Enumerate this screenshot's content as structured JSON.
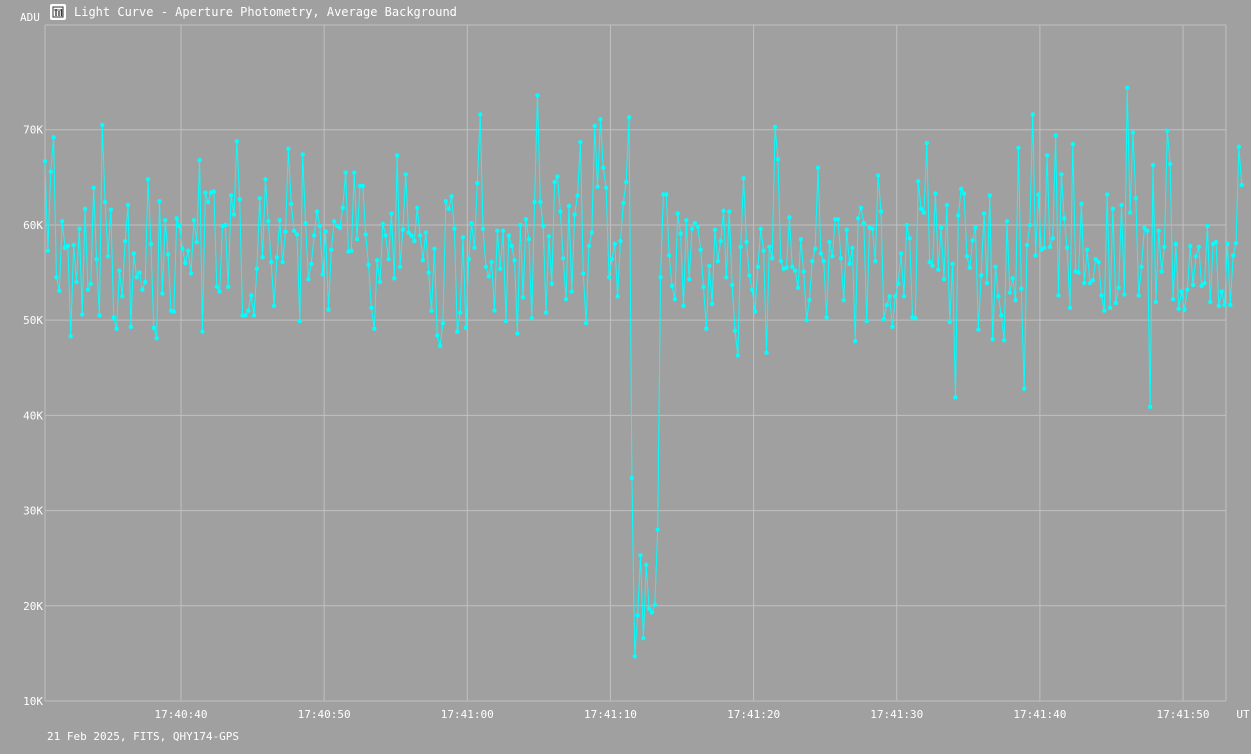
{
  "window": {
    "title": "Light Curve - Aperture Photometry, Average Background",
    "icon": "chart-icon",
    "footer": "21 Feb 2025, FITS, QHY174-GPS"
  },
  "colors": {
    "background": "#a0a0a0",
    "grid": "#c0c0c0",
    "series": "#00ffff",
    "text": "#ffffff"
  },
  "chart_data": {
    "type": "line",
    "title": "Light Curve - Aperture Photometry, Average Background",
    "ylabel": "ADU",
    "xlabel": "UT",
    "ylim": [
      10000,
      81000
    ],
    "xlim": [
      "17:40:30.5",
      "17:41:53.0"
    ],
    "grid": true,
    "markers": true,
    "x_ticks": [
      "17:40:40",
      "17:40:50",
      "17:41:00",
      "17:41:10",
      "17:41:20",
      "17:41:30",
      "17:41:40",
      "17:41:50"
    ],
    "y_ticks": [
      "10K",
      "20K",
      "30K",
      "40K",
      "50K",
      "60K",
      "70K"
    ],
    "x_start": "17:40:30.5",
    "x_step_seconds": 0.2,
    "series": [
      {
        "values": [
          66700,
          57300,
          65600,
          69200,
          54500,
          53100,
          60400,
          57600,
          57800,
          48300,
          57900,
          54000,
          59600,
          50600,
          61700,
          53200,
          53800,
          63900,
          56400,
          50500,
          70500,
          62400,
          56700,
          61600,
          50300,
          49100,
          55200,
          52500,
          58300,
          62100,
          49300,
          57000,
          54500,
          55000,
          53200,
          54000,
          64800,
          58000,
          49200,
          48100,
          62500,
          52800,
          60500,
          56900,
          51000,
          50900,
          60700,
          59900,
          57500,
          56000,
          57300,
          54900,
          60500,
          58200,
          66800,
          48800,
          63400,
          62400,
          63400,
          63500,
          53500,
          53000,
          59900,
          60000,
          53500,
          63100,
          61100,
          68800,
          62700,
          50500,
          50500,
          51000,
          52600,
          50500,
          55400,
          62800,
          56600,
          64800,
          60400,
          56100,
          51500,
          56600,
          60500,
          56100,
          59300,
          68000,
          62200,
          59400,
          59000,
          49900,
          67400,
          60200,
          54300,
          55900,
          58900,
          61400,
          59900,
          54800,
          59300,
          51100,
          57400,
          60400,
          59900,
          59700,
          61800,
          65500,
          57200,
          57300,
          65500,
          58500,
          64100,
          64100,
          59000,
          55800,
          51300,
          49100,
          56300,
          54000,
          60100,
          58900,
          56400,
          61200,
          54400,
          67300,
          55600,
          59500,
          65300,
          59200,
          58900,
          58300,
          61800,
          58900,
          56300,
          59200,
          55000,
          51000,
          57500,
          48400,
          47300,
          49700,
          62500,
          61700,
          63000,
          59600,
          48800,
          50800,
          58700,
          49200,
          56400,
          60200,
          57600,
          64400,
          71600,
          59600,
          55600,
          54600,
          56100,
          51000,
          59400,
          55400,
          59400,
          49900,
          58900,
          57800,
          56300,
          48600,
          60000,
          52400,
          60600,
          58500,
          50200,
          62400,
          73600,
          62400,
          59900,
          50800,
          58800,
          53800,
          64500,
          65100,
          61400,
          56500,
          52200,
          62000,
          53000,
          61100,
          63100,
          68700,
          54900,
          49700,
          57800,
          59200,
          70400,
          64000,
          71100,
          66000,
          63900,
          54500,
          56400,
          58000,
          52500,
          58300,
          62300,
          64500,
          71300,
          33400,
          14700,
          19000,
          25300,
          16600,
          24300,
          19700,
          19300,
          20100,
          28000,
          54500,
          63200,
          63200,
          56800,
          53600,
          52200,
          61200,
          59100,
          51500,
          60500,
          54300,
          59600,
          60200,
          59800,
          57400,
          53500,
          49100,
          55700,
          51700,
          59500,
          56200,
          58300,
          61500,
          54500,
          61400,
          53700,
          48900,
          46300,
          57700,
          64900,
          58200,
          54700,
          53200,
          50900,
          55600,
          59600,
          57300,
          46600,
          57700,
          56500,
          70300,
          66900,
          56200,
          55400,
          55500,
          60800,
          55600,
          55200,
          53400,
          58500,
          55100,
          50000,
          52100,
          56200,
          57500,
          66000,
          57000,
          56200,
          50300,
          58200,
          56700,
          60600,
          60600,
          56500,
          52100,
          59500,
          55900,
          57600,
          47800,
          60700,
          61800,
          60200,
          49900,
          59700,
          59600,
          56200,
          65200,
          61400,
          50100,
          51600,
          52500,
          49300,
          52500,
          53800,
          57000,
          52500,
          60000,
          58600,
          50300,
          50200,
          64600,
          61700,
          61300,
          68600,
          56100,
          55700,
          63300,
          55300,
          59700,
          54300,
          62100,
          49800,
          55900,
          41900,
          61000,
          63800,
          63300,
          56700,
          55500,
          58400,
          59700,
          49000,
          54700,
          61200,
          53900,
          63100,
          48000,
          55600,
          52500,
          50500,
          47900,
          60400,
          52900,
          54400,
          52100,
          68100,
          53300,
          42800,
          57900,
          60000,
          71600,
          56800,
          63200,
          57400,
          57600,
          67300,
          57700,
          58600,
          69400,
          52600,
          65300,
          60700,
          57600,
          51300,
          68500,
          55100,
          55000,
          62200,
          53900,
          57400,
          53900,
          54200,
          56400,
          56100,
          52600,
          51000,
          63200,
          51300,
          61700,
          51800,
          53400,
          62100,
          52700,
          74400,
          61300,
          69700,
          62800,
          52600,
          55600,
          59700,
          59400,
          40900,
          66300,
          51900,
          59400,
          55100,
          57700,
          69900,
          66400,
          52200,
          58000,
          51200,
          53000,
          51100,
          53200,
          57800,
          53700,
          56700,
          57700,
          53600,
          53900,
          59900,
          51900,
          58000,
          58200,
          51500,
          53000,
          51600,
          58000,
          51600,
          56800,
          58100,
          68200,
          64200
        ]
      }
    ]
  }
}
